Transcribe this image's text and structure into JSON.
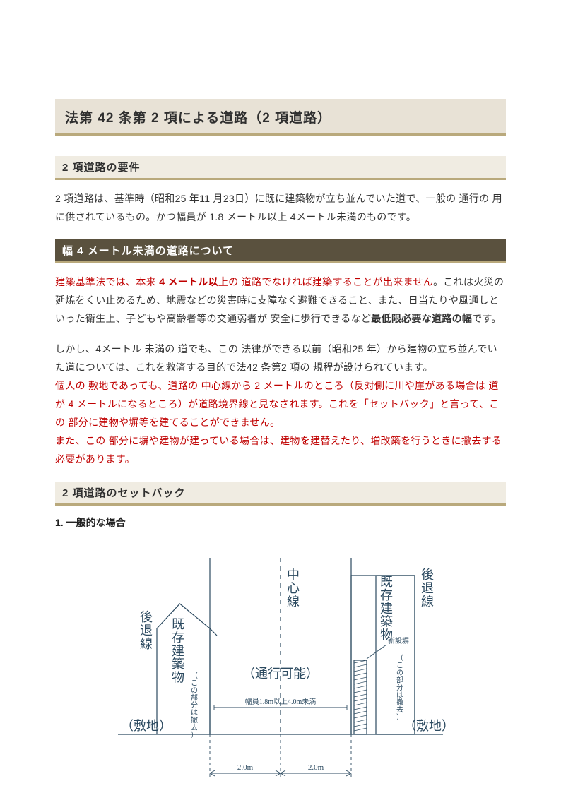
{
  "title": "法第 42 条第 2 項による道路（2 項道路）",
  "sections": {
    "s1": {
      "heading": "2 項道路の要件",
      "p1": "2 項道路は、基準時（昭和25 年11 月23日）に既に建築物が立ち並んでいた道で、一般の 通行の 用に供されているもの。かつ幅員が 1.8 メートル以上 4メートル未満のものです。"
    },
    "s2": {
      "heading": "幅 4 メートル未満の道路について",
      "p1a": "建築基準法では、本来 ",
      "p1b": "4 メートル以上",
      "p1c": "の 道路でなければ建築することが出来ません",
      "p1d": "。これは火災の延焼をくい止めるため、地震などの災害時に支障なく避難できること、また、日当たりや風通しといった衛生上、子どもや高齢者等の交通弱者が 安全に歩行できるなど",
      "p1e": "最低限必要な道路の幅",
      "p1f": "です。",
      "p2a": "しかし、4メートル 未満の 道でも、この 法律ができる以前（昭和25 年）から建物の立ち並んでいた道については、これを救済する目的で法42 条第2 項の 規程が設けられています。",
      "p2b": "個人の 敷地であっても、道路の 中心線から 2 メートルのところ（反対側に川や崖がある場合は 道が 4 メートルになるところ）が道路境界線と見なされます。これを「セットバック」と言って、この 部分に建物や塀等を建てることができません。",
      "p2c": "また、この 部分に塀や建物が建っている場合は、建物を建替えたり、増改築を行うときに撤去する必要があります。"
    },
    "s3": {
      "heading": "2 項道路のセットバック",
      "case1": "1. 一般的な場合"
    }
  },
  "diagram": {
    "labels": {
      "center_line": "中心線",
      "retreat_line": "後退線",
      "existing_building": "既存建築物",
      "note_remove": "（この部分は撤去）",
      "passable": "（通行可能）",
      "site": "（敷地）",
      "new_wall": "新設塀",
      "width_note": "幅員1.8m以上4.0m未満",
      "dist": "2.0m"
    },
    "colors": {
      "line": "#2c4a60",
      "text": "#2c4a60",
      "hatch": "#2c4a60",
      "bg": "#ffffff"
    },
    "stroke_width": 1.2,
    "font_size_large": 18,
    "font_size_mid": 14,
    "font_size_small": 10
  }
}
